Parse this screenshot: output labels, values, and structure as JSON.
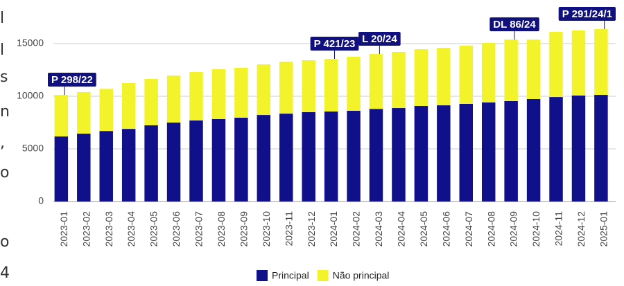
{
  "chart_data": {
    "type": "stacked_bar",
    "categories": [
      "2023-01",
      "2023-02",
      "2023-03",
      "2023-04",
      "2023-05",
      "2023-06",
      "2023-07",
      "2023-08",
      "2023-09",
      "2023-10",
      "2023-11",
      "2023-12",
      "2024-01",
      "2024-02",
      "2024-03",
      "2024-04",
      "2024-05",
      "2024-06",
      "2024-07",
      "2024-08",
      "2024-09",
      "2024-10",
      "2024-11",
      "2024-12",
      "2025-01"
    ],
    "series": [
      {
        "name": "Principal",
        "color": "#10108a",
        "values": [
          6180,
          6450,
          6700,
          6900,
          7240,
          7500,
          7700,
          7830,
          7960,
          8220,
          8350,
          8490,
          8550,
          8620,
          8800,
          8880,
          9080,
          9140,
          9280,
          9410,
          9540,
          9740,
          9930,
          10070,
          10130
        ]
      },
      {
        "name": "Não principal",
        "color": "#f3f32c",
        "values": [
          3950,
          3950,
          4000,
          4350,
          4410,
          4470,
          4600,
          4740,
          4740,
          4810,
          4940,
          4930,
          5000,
          5130,
          5210,
          5330,
          5390,
          5460,
          5520,
          5660,
          5850,
          5650,
          6190,
          6180,
          6250
        ]
      }
    ],
    "ylim": [
      0,
      17500
    ],
    "yticks": [
      0,
      5000,
      10000,
      15000
    ],
    "grid": true,
    "legend": "bottom",
    "annotations": [
      {
        "text": "P 298/22",
        "x": "2023-01"
      },
      {
        "text": "P 421/23",
        "x": "2024-01"
      },
      {
        "text": "L 20/24",
        "x": "2024-03"
      },
      {
        "text": "DL 86/24",
        "x": "2024-09"
      },
      {
        "text": "P 291/24/1",
        "x": "2025-01"
      }
    ]
  },
  "side_fragments": [
    "l",
    "l",
    "s",
    "n",
    ",",
    "o",
    "o",
    "4"
  ]
}
